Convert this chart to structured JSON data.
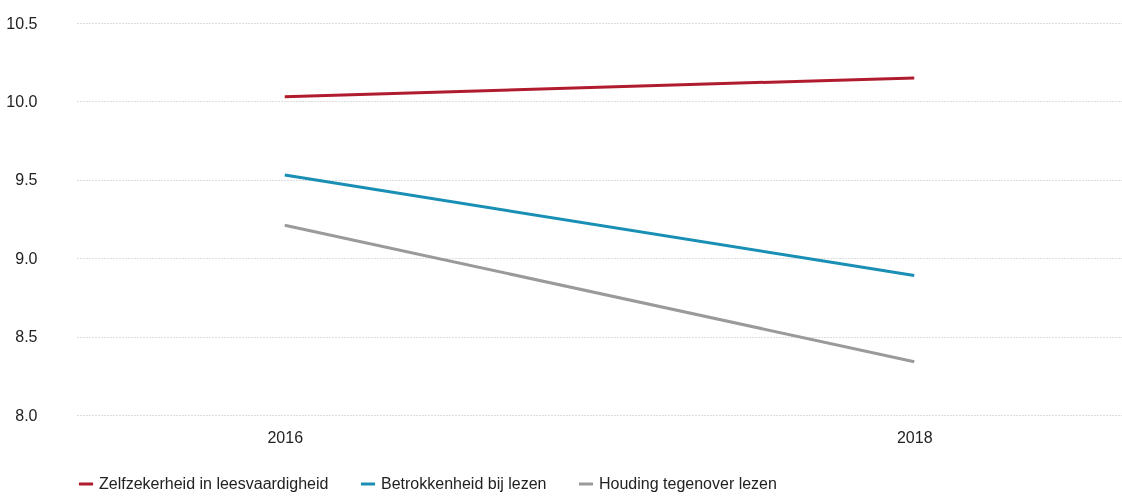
{
  "chart_data": {
    "type": "line",
    "categories": [
      "2016",
      "2018"
    ],
    "series": [
      {
        "name": "Zelfzekerheid in leesvaardigheid",
        "color": "#b01c2e",
        "values": [
          10.03,
          10.15
        ]
      },
      {
        "name": "Betrokkenheid bij lezen",
        "color": "#1a8fb5",
        "values": [
          9.53,
          8.89
        ]
      },
      {
        "name": "Houding tegenover lezen",
        "color": "#9a9a9a",
        "values": [
          9.21,
          8.34
        ]
      }
    ],
    "ylim": [
      8.0,
      10.5
    ],
    "yticks": [
      {
        "value": 8.0,
        "label": "8.0"
      },
      {
        "value": 8.5,
        "label": "8.5"
      },
      {
        "value": 9.0,
        "label": "9.0"
      },
      {
        "value": 9.5,
        "label": "9.5"
      },
      {
        "value": 10.0,
        "label": "10.0"
      },
      {
        "value": 10.5,
        "label": "10.5"
      }
    ],
    "grid": "y",
    "legend": "bottom",
    "marker": "none",
    "line_style": "solid"
  }
}
